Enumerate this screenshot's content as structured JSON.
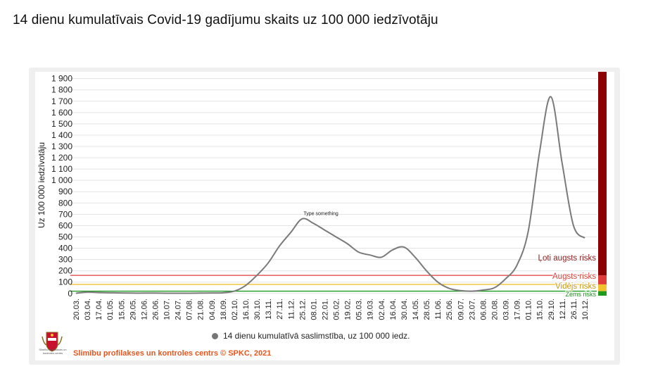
{
  "page": {
    "title": "14 dienu kumulatīvais Covid-19 gadījumu skaits uz 100 000 iedzīvotāju"
  },
  "colors": {
    "line": "#7a7a7a",
    "risk_very_high": "#8b0000",
    "risk_high": "#e03a3a",
    "risk_medium": "#f2c12e",
    "risk_low": "#1f9a1f",
    "label_very_high": "#8b1a1a",
    "label_high": "#d9453a",
    "label_medium": "#c9971a",
    "label_low": "#1f8a1f"
  },
  "risk_zones": [
    {
      "label": "Ļoti augsts risks",
      "from": 160,
      "to": 1960,
      "color_key": "risk_very_high",
      "label_color_key": "label_very_high"
    },
    {
      "label": "Augsts risks",
      "from": 80,
      "to": 160,
      "color_key": "risk_high",
      "label_color_key": "label_high"
    },
    {
      "label": "Vidējs risks",
      "from": 20,
      "to": 80,
      "color_key": "risk_medium",
      "label_color_key": "label_medium"
    },
    {
      "label": "Zems risks",
      "from": -20,
      "to": 20,
      "color_key": "risk_low",
      "label_color_key": "label_low"
    }
  ],
  "annotation": {
    "text": "Type something",
    "x": "08.01.",
    "y": 680
  },
  "legend": {
    "label": "14 dienu kumulatīvā saslimstība, uz 100 000 iedz."
  },
  "footer": {
    "source": "Slimību profilakses un kontroles centrs © SPKC, 2021",
    "logo_caption": "Slimību profilakses un kontroles centrs"
  },
  "chart_data": {
    "type": "line",
    "title": "14 dienu kumulatīvais Covid-19 gadījumu skaits uz 100 000 iedzīvotāju",
    "xlabel": "",
    "ylabel": "Uz 100 000 iedzīvotāju",
    "ylim": [
      -20,
      1960
    ],
    "yticks": [
      0,
      100,
      200,
      300,
      400,
      500,
      600,
      700,
      800,
      900,
      1000,
      1100,
      1200,
      1300,
      1400,
      1500,
      1600,
      1700,
      1800,
      1900
    ],
    "ytick_labels": [
      "0",
      "100",
      "200",
      "300",
      "400",
      "500",
      "600",
      "700",
      "800",
      "900",
      "1 000",
      "1 100",
      "1 200",
      "1 300",
      "1 400",
      "1 500",
      "1 600",
      "1 700",
      "1 800",
      "1 900"
    ],
    "grid": true,
    "legend_position": "bottom",
    "reference_lines": [
      {
        "y": 160,
        "color_key": "risk_high"
      },
      {
        "y": 80,
        "color_key": "risk_medium"
      },
      {
        "y": 20,
        "color_key": "risk_low"
      }
    ],
    "x": [
      "20.03.",
      "03.04.",
      "17.04.",
      "01.05.",
      "15.05.",
      "29.05.",
      "12.06.",
      "26.06.",
      "10.07.",
      "24.07.",
      "07.08.",
      "21.08.",
      "04.09.",
      "18.09.",
      "02.10.",
      "16.10.",
      "30.10.",
      "13.11.",
      "27.11.",
      "11.12.",
      "25.12.",
      "08.01.",
      "22.01.",
      "05.02.",
      "19.02.",
      "05.03.",
      "19.03.",
      "02.04.",
      "16.04.",
      "30.04.",
      "14.05.",
      "28.05.",
      "11.06.",
      "25.06.",
      "09.07.",
      "23.07.",
      "06.08.",
      "20.08.",
      "03.09.",
      "17.09.",
      "01.10.",
      "15.10.",
      "29.10.",
      "12.11.",
      "26.11.",
      "10.12."
    ],
    "series": [
      {
        "name": "14 dienu kumulatīvā saslimstība, uz 100 000 iedz.",
        "values": [
          2,
          12,
          8,
          6,
          4,
          3,
          3,
          3,
          2,
          2,
          2,
          3,
          4,
          6,
          20,
          70,
          160,
          270,
          420,
          540,
          660,
          620,
          560,
          500,
          440,
          365,
          340,
          320,
          385,
          410,
          320,
          200,
          100,
          45,
          25,
          20,
          30,
          50,
          130,
          250,
          550,
          1250,
          1740,
          1150,
          600,
          490
        ]
      }
    ]
  }
}
